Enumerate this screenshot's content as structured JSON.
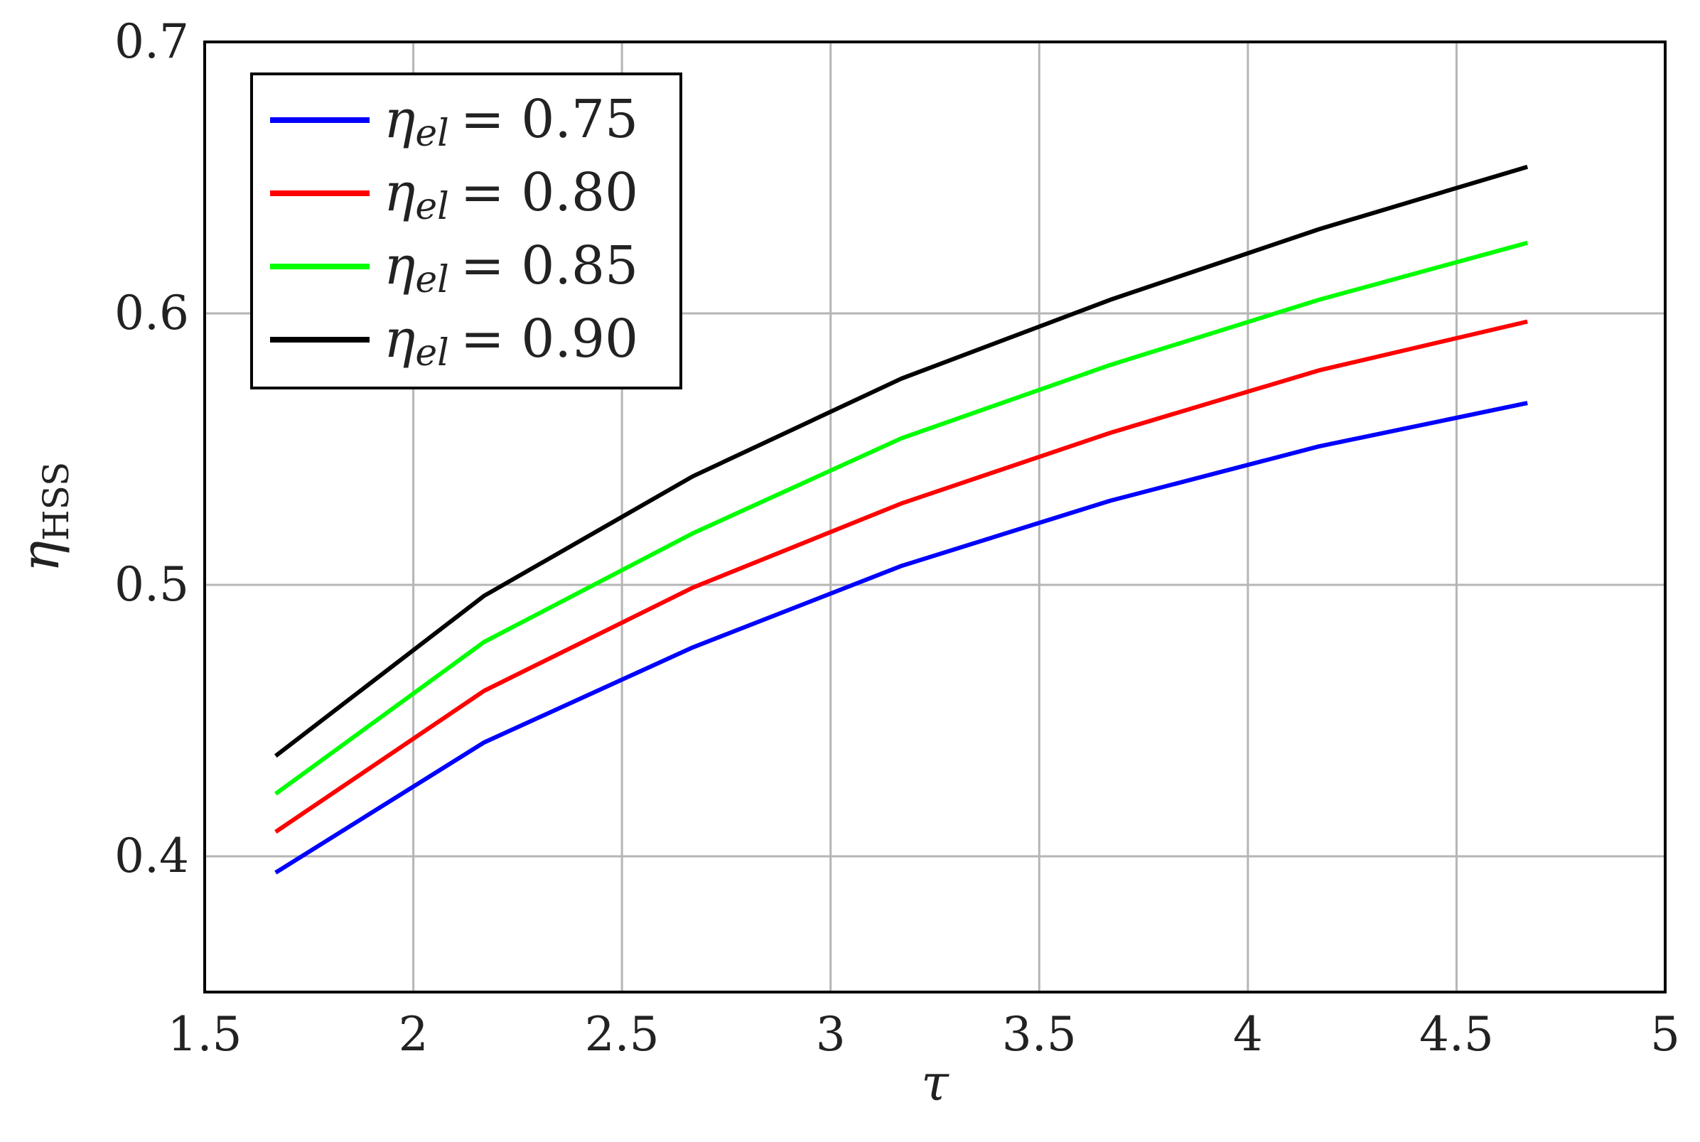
{
  "chart_data": {
    "type": "line",
    "xlabel": "τ",
    "ylabel": "η_HSS",
    "ylabel_main": "η",
    "ylabel_sub": "HSS",
    "xlim": [
      1.5,
      5
    ],
    "ylim": [
      0.35,
      0.7
    ],
    "xticks": [
      1.5,
      2,
      2.5,
      3,
      3.5,
      4,
      4.5,
      5
    ],
    "xtick_labels": [
      "1.5",
      "2",
      "2.5",
      "3",
      "3.5",
      "4",
      "4.5",
      "5"
    ],
    "yticks": [
      0.4,
      0.5,
      0.6,
      0.7
    ],
    "ytick_labels": [
      "0.4",
      "0.5",
      "0.6",
      "0.7"
    ],
    "grid": true,
    "legend_position": "top-left",
    "x": [
      1.67,
      2.17,
      2.67,
      3.17,
      3.67,
      4.17,
      4.67
    ],
    "series": [
      {
        "name": "η_el = 0.75",
        "legend_symbol": "η",
        "legend_sub": "el",
        "legend_rhs": "= 0.75",
        "color": "#0000ff",
        "values": [
          0.394,
          0.442,
          0.477,
          0.507,
          0.531,
          0.551,
          0.567
        ]
      },
      {
        "name": "η_el = 0.80",
        "legend_symbol": "η",
        "legend_sub": "el",
        "legend_rhs": "= 0.80",
        "color": "#ff0000",
        "values": [
          0.409,
          0.461,
          0.499,
          0.53,
          0.556,
          0.579,
          0.597
        ]
      },
      {
        "name": "η_el = 0.85",
        "legend_symbol": "η",
        "legend_sub": "el",
        "legend_rhs": "= 0.85",
        "color": "#00ff00",
        "values": [
          0.423,
          0.479,
          0.519,
          0.554,
          0.581,
          0.605,
          0.626
        ]
      },
      {
        "name": "η_el = 0.90",
        "legend_symbol": "η",
        "legend_sub": "el",
        "legend_rhs": "= 0.90",
        "color": "#000000",
        "values": [
          0.437,
          0.496,
          0.54,
          0.576,
          0.605,
          0.631,
          0.654
        ]
      }
    ]
  }
}
